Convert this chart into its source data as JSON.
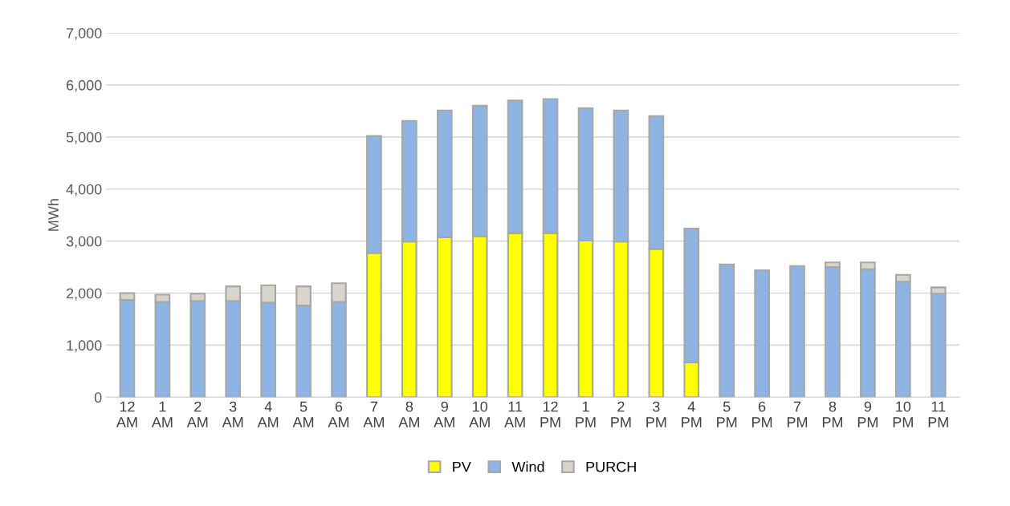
{
  "chart_data": {
    "type": "bar",
    "stacked": true,
    "ylabel": "MWh",
    "categories": [
      "12\nAM",
      "1\nAM",
      "2\nAM",
      "3\nAM",
      "4\nAM",
      "5\nAM",
      "6\nAM",
      "7\nAM",
      "8\nAM",
      "9\nAM",
      "10\nAM",
      "11\nAM",
      "12\nPM",
      "1\nPM",
      "2\nPM",
      "3\nPM",
      "4\nPM",
      "5\nPM",
      "6\nPM",
      "7\nPM",
      "8\nPM",
      "9\nPM",
      "10\nPM",
      "11\nPM"
    ],
    "series": [
      {
        "name": "PV",
        "color": "#ffff00",
        "values": [
          null,
          null,
          null,
          null,
          null,
          null,
          null,
          2770,
          2990,
          3070,
          3090,
          3150,
          3150,
          3010,
          2990,
          2850,
          670,
          null,
          null,
          null,
          null,
          null,
          null,
          null
        ]
      },
      {
        "name": "Wind",
        "color": "#8db4e2",
        "values": [
          1870,
          1830,
          1850,
          1850,
          1820,
          1760,
          1830,
          2250,
          2320,
          2440,
          2510,
          2550,
          2580,
          2540,
          2520,
          2550,
          2570,
          2550,
          2440,
          2520,
          2500,
          2460,
          2220,
          1990
        ]
      },
      {
        "name": "PURCH",
        "color": "#d9d4cc",
        "values": [
          130,
          140,
          140,
          280,
          330,
          370,
          360,
          null,
          null,
          null,
          null,
          null,
          null,
          null,
          null,
          null,
          null,
          null,
          null,
          null,
          90,
          130,
          130,
          120
        ]
      }
    ],
    "ylim": [
      0,
      7000
    ],
    "yticks": [
      {
        "value": 0,
        "label": "0"
      },
      {
        "value": 1000,
        "label": "1,000"
      },
      {
        "value": 2000,
        "label": "2,000"
      },
      {
        "value": 3000,
        "label": "3,000"
      },
      {
        "value": 4000,
        "label": "4,000"
      },
      {
        "value": 5000,
        "label": "5,000"
      },
      {
        "value": 6000,
        "label": "6,000"
      },
      {
        "value": 7000,
        "label": "7,000"
      }
    ],
    "grid": "y",
    "legend": "bottom"
  }
}
